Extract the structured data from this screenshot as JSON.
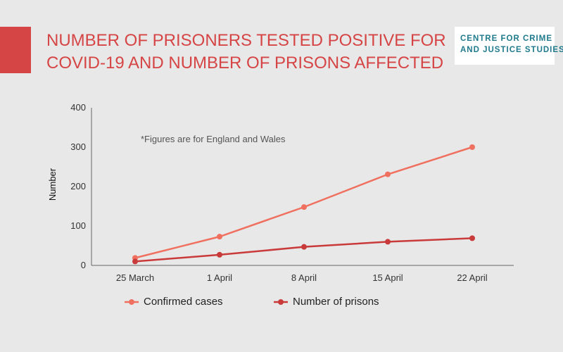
{
  "header": {
    "title": "NUMBER OF PRISONERS TESTED POSITIVE FOR COVID-19 AND NUMBER OF PRISONS AFFECTED",
    "accent_color": "#d64545"
  },
  "logo": {
    "line1": "CENTRE FOR CRIME",
    "line2": "AND JUSTICE STUDIES",
    "color": "#1f7a8c"
  },
  "chart_data": {
    "type": "line",
    "categories": [
      "25 March",
      "1 April",
      "8 April",
      "15 April",
      "22 April"
    ],
    "series": [
      {
        "name": "Confirmed cases",
        "values": [
          19,
          73,
          148,
          231,
          300
        ],
        "color": "#f07060"
      },
      {
        "name": "Number of prisons",
        "values": [
          10,
          27,
          47,
          60,
          69
        ],
        "color": "#c93a3a"
      }
    ],
    "ylabel": "Number",
    "xlabel": "",
    "ylim": [
      0,
      400
    ],
    "yticks": [
      0,
      100,
      200,
      300,
      400
    ],
    "annotation": "*Figures are for England and Wales",
    "grid": false,
    "legend_position": "bottom"
  }
}
